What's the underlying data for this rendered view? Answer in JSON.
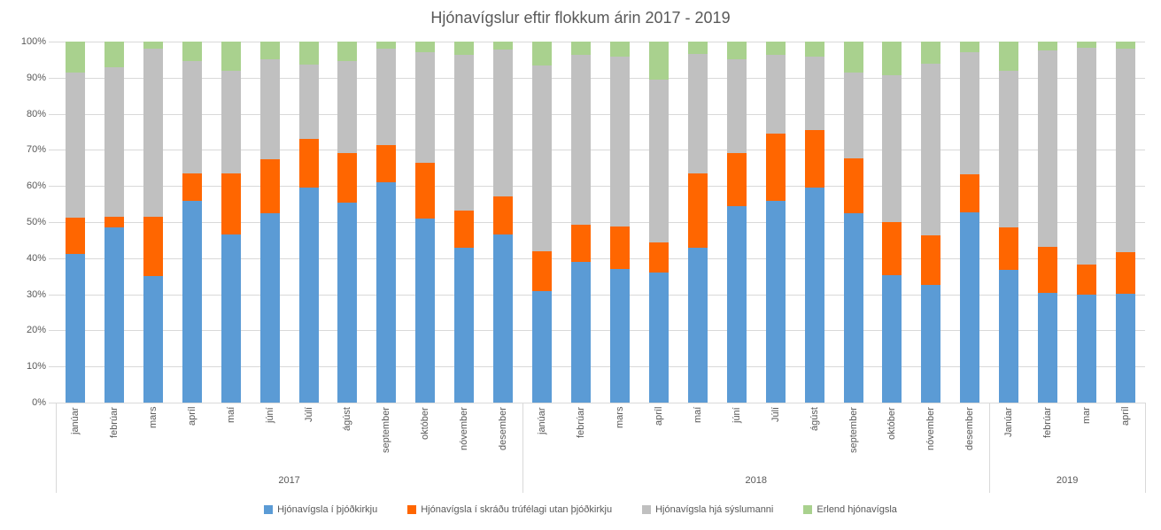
{
  "title": "Hjónavígslur eftir flokkum árin 2017 - 2019",
  "chart_data": {
    "type": "bar",
    "variant": "stacked-100-percent",
    "title": "Hjónavígslur eftir flokkum árin 2017 - 2019",
    "xlabel": "",
    "ylabel": "",
    "ylim": [
      0,
      100
    ],
    "y_tick_labels": [
      "0%",
      "10%",
      "20%",
      "30%",
      "40%",
      "50%",
      "60%",
      "70%",
      "80%",
      "90%",
      "100%"
    ],
    "grid": true,
    "legend_position": "bottom",
    "groups": [
      {
        "year": "2017",
        "months": [
          "janúar",
          "febrúar",
          "mars",
          "apríl",
          "maí",
          "júní",
          "Júlí",
          "ágúst",
          "september",
          "október",
          "nóvember",
          "desember"
        ]
      },
      {
        "year": "2018",
        "months": [
          "janúar",
          "febrúar",
          "mars",
          "apríl",
          "maí",
          "júní",
          "Júlí",
          "ágúst",
          "september",
          "október",
          "nóvember",
          "desember"
        ]
      },
      {
        "year": "2019",
        "months": [
          "Janúar",
          "febrúar",
          "mar",
          "apríl"
        ]
      }
    ],
    "series": [
      {
        "name": "Hjónavígsla í þjóðkirkju",
        "color": "#5B9BD5",
        "values": [
          41.2,
          48.5,
          35.0,
          56.0,
          46.5,
          52.5,
          59.5,
          55.3,
          61.0,
          51.0,
          43.0,
          46.5,
          31.0,
          39.0,
          37.0,
          36.0,
          43.0,
          54.5,
          56.0,
          59.6,
          52.5,
          35.2,
          32.6,
          52.8,
          36.8,
          30.4,
          29.8,
          30.2
        ]
      },
      {
        "name": "Hjónavígsla í skráðu trúfélagi utan þjóðkirkju",
        "color": "#FF6600",
        "values": [
          10.0,
          3.0,
          16.5,
          7.5,
          17.0,
          14.8,
          13.5,
          13.7,
          10.3,
          15.5,
          10.3,
          10.5,
          11.0,
          10.2,
          11.8,
          8.3,
          20.5,
          14.7,
          18.6,
          15.9,
          15.1,
          14.7,
          13.8,
          10.5,
          11.7,
          12.8,
          8.5,
          11.4
        ]
      },
      {
        "name": "Hjónavígsla hjá sýslumanni",
        "color": "#C0C0C0",
        "values": [
          40.3,
          41.5,
          46.5,
          31.0,
          28.5,
          27.7,
          20.7,
          25.7,
          26.7,
          30.5,
          43.1,
          40.7,
          51.3,
          47.2,
          47.0,
          45.1,
          33.0,
          25.8,
          21.7,
          20.4,
          23.8,
          40.7,
          47.5,
          33.7,
          43.5,
          54.3,
          59.9,
          56.4
        ]
      },
      {
        "name": "Erlend hjónavígsla",
        "color": "#A9D18E",
        "values": [
          8.5,
          7.0,
          2.0,
          5.5,
          8.0,
          5.0,
          6.3,
          5.3,
          2.0,
          3.0,
          3.6,
          2.3,
          6.7,
          3.6,
          4.2,
          10.6,
          3.5,
          5.0,
          3.7,
          4.1,
          8.6,
          9.4,
          6.1,
          3.0,
          8.0,
          2.5,
          1.8,
          2.0
        ]
      }
    ]
  }
}
